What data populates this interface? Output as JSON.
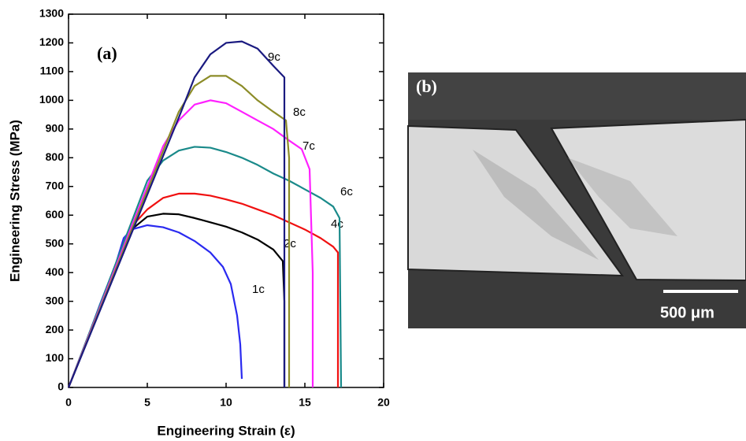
{
  "chart_data": {
    "type": "line",
    "xlabel": "Engineering Strain (ε)",
    "ylabel": "Engineering Stress (MPa)",
    "annotation": "(a)",
    "xlim": [
      0,
      20
    ],
    "xticks": [
      0,
      5,
      10,
      15,
      20
    ],
    "ylim": [
      0,
      1300
    ],
    "yticks": [
      0,
      100,
      200,
      300,
      400,
      500,
      600,
      700,
      800,
      900,
      1000,
      1100,
      1200,
      1300
    ],
    "series": [
      {
        "name": "1c",
        "color": "#2a2af0",
        "x": [
          0,
          1,
          2,
          3,
          3.5,
          4,
          5,
          6,
          7,
          8,
          9,
          9.8,
          10.3,
          10.7,
          10.9,
          11
        ],
        "values": [
          0,
          140,
          290,
          430,
          520,
          550,
          565,
          558,
          540,
          510,
          470,
          420,
          360,
          250,
          150,
          30
        ]
      },
      {
        "name": "2c",
        "color": "#000000",
        "x": [
          0,
          4,
          5,
          6,
          7,
          8,
          9,
          10,
          11,
          12,
          13,
          13.6,
          13.7,
          13.7
        ],
        "values": [
          0,
          550,
          595,
          605,
          603,
          590,
          575,
          560,
          540,
          515,
          480,
          440,
          300,
          0
        ]
      },
      {
        "name": "4c",
        "color": "#f01010",
        "x": [
          0,
          4,
          5,
          6,
          7,
          8,
          9,
          10,
          11,
          12,
          13,
          14,
          15,
          16,
          16.8,
          17.1,
          17.1
        ],
        "values": [
          0,
          560,
          620,
          660,
          675,
          675,
          668,
          655,
          640,
          620,
          600,
          575,
          550,
          520,
          490,
          470,
          0
        ]
      },
      {
        "name": "6c",
        "color": "#1a8a8a",
        "x": [
          0,
          5,
          6,
          7,
          8,
          9,
          10,
          11,
          12,
          13,
          14,
          15,
          16,
          16.8,
          17.2,
          17.3
        ],
        "values": [
          0,
          720,
          790,
          825,
          838,
          835,
          820,
          800,
          775,
          745,
          720,
          690,
          660,
          630,
          590,
          0
        ]
      },
      {
        "name": "7c",
        "color": "#ff20ff",
        "x": [
          0,
          6,
          7,
          8,
          9,
          10,
          11,
          12,
          13,
          14,
          14.8,
          15.3,
          15.5,
          15.5
        ],
        "values": [
          0,
          840,
          930,
          985,
          1000,
          990,
          960,
          930,
          900,
          860,
          830,
          760,
          400,
          0
        ]
      },
      {
        "name": "8c",
        "color": "#8c8c28",
        "x": [
          0,
          7,
          8,
          9,
          10,
          11,
          12,
          13,
          13.8,
          14,
          14
        ],
        "values": [
          0,
          960,
          1050,
          1085,
          1085,
          1050,
          1000,
          960,
          930,
          800,
          0
        ]
      },
      {
        "name": "9c",
        "color": "#1a1a80",
        "x": [
          0,
          7,
          8,
          9,
          10,
          11,
          12,
          13,
          13.7,
          13.7
        ],
        "values": [
          0,
          940,
          1080,
          1160,
          1200,
          1205,
          1180,
          1120,
          1080,
          0
        ]
      }
    ]
  },
  "image_panel": {
    "label": "(b)",
    "scale_bar": "500 μm"
  }
}
